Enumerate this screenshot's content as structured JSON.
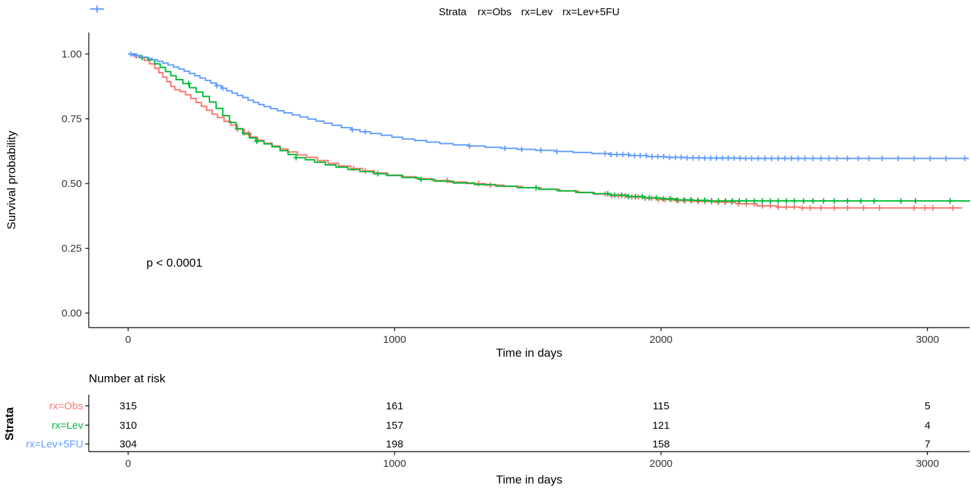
{
  "chart_data": {
    "type": "line",
    "subtype": "kaplan-meier-step",
    "title": "",
    "xlabel": "Time in days",
    "ylabel": "Survival probability",
    "legend_title": "Strata",
    "legend_position": "top",
    "pvalue_annotation": "p < 0.0001",
    "grid": false,
    "xlim": [
      0,
      3160
    ],
    "ylim": [
      0,
      1
    ],
    "xticks": {
      "values": [
        0,
        1000,
        2000,
        3000
      ],
      "labels": [
        "0",
        "1000",
        "2000",
        "3000"
      ]
    },
    "yticks": {
      "values": [
        0,
        0.25,
        0.5,
        0.75,
        1
      ],
      "labels": [
        "0.00",
        "0.25",
        "0.50",
        "0.75",
        "1.00"
      ]
    },
    "series": [
      {
        "name": "rx=Obs",
        "color": "#F8766D",
        "points": [
          [
            0,
            1.0
          ],
          [
            20,
            0.994
          ],
          [
            40,
            0.986
          ],
          [
            60,
            0.975
          ],
          [
            80,
            0.962
          ],
          [
            100,
            0.945
          ],
          [
            115,
            0.928
          ],
          [
            130,
            0.911
          ],
          [
            145,
            0.893
          ],
          [
            160,
            0.875
          ],
          [
            175,
            0.862
          ],
          [
            195,
            0.855
          ],
          [
            215,
            0.843
          ],
          [
            235,
            0.828
          ],
          [
            255,
            0.813
          ],
          [
            275,
            0.798
          ],
          [
            295,
            0.783
          ],
          [
            315,
            0.768
          ],
          [
            335,
            0.755
          ],
          [
            360,
            0.74
          ],
          [
            385,
            0.726
          ],
          [
            410,
            0.71
          ],
          [
            435,
            0.695
          ],
          [
            460,
            0.68
          ],
          [
            485,
            0.667
          ],
          [
            510,
            0.656
          ],
          [
            540,
            0.645
          ],
          [
            570,
            0.633
          ],
          [
            600,
            0.622
          ],
          [
            635,
            0.611
          ],
          [
            670,
            0.601
          ],
          [
            710,
            0.589
          ],
          [
            750,
            0.578
          ],
          [
            790,
            0.568
          ],
          [
            835,
            0.558
          ],
          [
            880,
            0.549
          ],
          [
            925,
            0.541
          ],
          [
            975,
            0.533
          ],
          [
            1025,
            0.526
          ],
          [
            1080,
            0.519
          ],
          [
            1140,
            0.512
          ],
          [
            1200,
            0.506
          ],
          [
            1270,
            0.5
          ],
          [
            1340,
            0.494
          ],
          [
            1410,
            0.489
          ],
          [
            1480,
            0.484
          ],
          [
            1550,
            0.478
          ],
          [
            1620,
            0.471
          ],
          [
            1690,
            0.465
          ],
          [
            1750,
            0.459
          ],
          [
            1810,
            0.453
          ],
          [
            1870,
            0.448
          ],
          [
            1930,
            0.443
          ],
          [
            1990,
            0.438
          ],
          [
            2050,
            0.434
          ],
          [
            2120,
            0.431
          ],
          [
            2200,
            0.428
          ],
          [
            2280,
            0.422
          ],
          [
            2360,
            0.414
          ],
          [
            2440,
            0.409
          ],
          [
            2520,
            0.406
          ],
          [
            3130,
            0.406
          ]
        ],
        "censor_times": [
          25,
          410,
          436,
          452,
          487,
          846,
          890,
          1198,
          1315,
          1359,
          1790,
          1815,
          1840,
          1865,
          1890,
          1915,
          1940,
          1965,
          1990,
          2015,
          2040,
          2065,
          2090,
          2115,
          2140,
          2165,
          2190,
          2215,
          2240,
          2265,
          2290,
          2320,
          2350,
          2380,
          2410,
          2440,
          2470,
          2500,
          2530,
          2560,
          2600,
          2650,
          2700,
          2760,
          2820,
          2950,
          2990,
          3020,
          3095
        ]
      },
      {
        "name": "rx=Lev",
        "color": "#00BA38",
        "points": [
          [
            0,
            1.0
          ],
          [
            25,
            0.994
          ],
          [
            50,
            0.987
          ],
          [
            75,
            0.977
          ],
          [
            100,
            0.962
          ],
          [
            120,
            0.948
          ],
          [
            140,
            0.932
          ],
          [
            160,
            0.916
          ],
          [
            180,
            0.901
          ],
          [
            205,
            0.886
          ],
          [
            230,
            0.87
          ],
          [
            255,
            0.853
          ],
          [
            280,
            0.836
          ],
          [
            305,
            0.815
          ],
          [
            330,
            0.79
          ],
          [
            355,
            0.762
          ],
          [
            380,
            0.736
          ],
          [
            405,
            0.712
          ],
          [
            430,
            0.692
          ],
          [
            455,
            0.676
          ],
          [
            480,
            0.664
          ],
          [
            510,
            0.653
          ],
          [
            540,
            0.642
          ],
          [
            570,
            0.627
          ],
          [
            600,
            0.612
          ],
          [
            630,
            0.6
          ],
          [
            665,
            0.592
          ],
          [
            700,
            0.582
          ],
          [
            740,
            0.572
          ],
          [
            780,
            0.563
          ],
          [
            825,
            0.554
          ],
          [
            870,
            0.546
          ],
          [
            920,
            0.538
          ],
          [
            970,
            0.531
          ],
          [
            1030,
            0.523
          ],
          [
            1090,
            0.516
          ],
          [
            1150,
            0.509
          ],
          [
            1220,
            0.502
          ],
          [
            1300,
            0.496
          ],
          [
            1380,
            0.49
          ],
          [
            1460,
            0.484
          ],
          [
            1540,
            0.478
          ],
          [
            1610,
            0.472
          ],
          [
            1680,
            0.466
          ],
          [
            1745,
            0.461
          ],
          [
            1810,
            0.455
          ],
          [
            1875,
            0.45
          ],
          [
            1940,
            0.445
          ],
          [
            2000,
            0.441
          ],
          [
            2060,
            0.437
          ],
          [
            2120,
            0.435
          ],
          [
            2180,
            0.433
          ],
          [
            3160,
            0.433
          ]
        ],
        "censor_times": [
          52,
          227,
          482,
          630,
          937,
          1099,
          1531,
          1800,
          1826,
          1852,
          1878,
          1904,
          1930,
          1956,
          1982,
          2008,
          2034,
          2060,
          2086,
          2112,
          2138,
          2164,
          2190,
          2216,
          2242,
          2268,
          2294,
          2320,
          2350,
          2380,
          2410,
          2440,
          2470,
          2500,
          2535,
          2570,
          2610,
          2650,
          2700,
          2750,
          2800,
          2900,
          2955,
          3085
        ]
      },
      {
        "name": "rx=Lev+5FU",
        "color": "#619CFF",
        "points": [
          [
            0,
            1.0
          ],
          [
            15,
            0.997
          ],
          [
            30,
            0.993
          ],
          [
            50,
            0.988
          ],
          [
            70,
            0.983
          ],
          [
            90,
            0.978
          ],
          [
            110,
            0.972
          ],
          [
            130,
            0.965
          ],
          [
            150,
            0.958
          ],
          [
            170,
            0.95
          ],
          [
            190,
            0.942
          ],
          [
            210,
            0.934
          ],
          [
            230,
            0.925
          ],
          [
            250,
            0.916
          ],
          [
            270,
            0.907
          ],
          [
            290,
            0.898
          ],
          [
            310,
            0.888
          ],
          [
            330,
            0.878
          ],
          [
            350,
            0.868
          ],
          [
            370,
            0.858
          ],
          [
            390,
            0.849
          ],
          [
            410,
            0.84
          ],
          [
            430,
            0.832
          ],
          [
            450,
            0.822
          ],
          [
            470,
            0.813
          ],
          [
            490,
            0.805
          ],
          [
            510,
            0.797
          ],
          [
            535,
            0.789
          ],
          [
            560,
            0.781
          ],
          [
            585,
            0.773
          ],
          [
            615,
            0.765
          ],
          [
            645,
            0.757
          ],
          [
            675,
            0.749
          ],
          [
            705,
            0.741
          ],
          [
            735,
            0.733
          ],
          [
            765,
            0.725
          ],
          [
            800,
            0.716
          ],
          [
            835,
            0.708
          ],
          [
            870,
            0.7
          ],
          [
            910,
            0.693
          ],
          [
            950,
            0.686
          ],
          [
            990,
            0.679
          ],
          [
            1030,
            0.672
          ],
          [
            1075,
            0.666
          ],
          [
            1120,
            0.66
          ],
          [
            1170,
            0.654
          ],
          [
            1220,
            0.649
          ],
          [
            1280,
            0.645
          ],
          [
            1340,
            0.64
          ],
          [
            1400,
            0.636
          ],
          [
            1460,
            0.632
          ],
          [
            1530,
            0.628
          ],
          [
            1600,
            0.624
          ],
          [
            1670,
            0.62
          ],
          [
            1740,
            0.616
          ],
          [
            1810,
            0.612
          ],
          [
            1880,
            0.608
          ],
          [
            1950,
            0.604
          ],
          [
            2020,
            0.601
          ],
          [
            2090,
            0.599
          ],
          [
            2160,
            0.598
          ],
          [
            2300,
            0.597
          ],
          [
            3155,
            0.597
          ]
        ],
        "censor_times": [
          10,
          32,
          333,
          355,
          841,
          890,
          1281,
          1414,
          1477,
          1549,
          1609,
          1790,
          1812,
          1834,
          1856,
          1878,
          1900,
          1922,
          1944,
          1966,
          1988,
          2010,
          2032,
          2054,
          2076,
          2098,
          2120,
          2142,
          2164,
          2186,
          2208,
          2230,
          2252,
          2274,
          2296,
          2318,
          2340,
          2365,
          2390,
          2415,
          2440,
          2465,
          2490,
          2515,
          2540,
          2570,
          2600,
          2630,
          2660,
          2700,
          2740,
          2780,
          2830,
          2890,
          2950,
          3010,
          3070,
          3140
        ]
      }
    ],
    "risk_table": {
      "title": "Number at risk",
      "ylabel": "Strata",
      "xlabel": "Time in days",
      "times": [
        0,
        1000,
        2000,
        3000
      ],
      "rows": [
        {
          "name": "rx=Obs",
          "color": "#F8766D",
          "values": [
            315,
            161,
            115,
            5
          ]
        },
        {
          "name": "rx=Lev",
          "color": "#00BA38",
          "values": [
            310,
            157,
            121,
            4
          ]
        },
        {
          "name": "rx=Lev+5FU",
          "color": "#619CFF",
          "values": [
            304,
            198,
            158,
            7
          ]
        }
      ]
    }
  }
}
